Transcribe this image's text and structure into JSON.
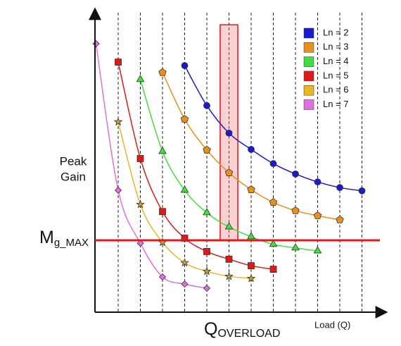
{
  "chart_data": {
    "type": "line",
    "y_label": [
      "Peak",
      "Gain"
    ],
    "x_label": "Load (Q)",
    "xlim": [
      0,
      13
    ],
    "ylim": [
      0,
      100
    ],
    "grid": true,
    "legend": "upper right",
    "mg_max": {
      "text": "M",
      "sub": "g_MAX",
      "value": 24.3,
      "color": "#e01818"
    },
    "q_overload": {
      "text": "Q",
      "sub": "OVERLOAD",
      "x": [
        5.6,
        6.4
      ],
      "top": 97.1,
      "color": "#e01818"
    },
    "series": [
      {
        "name": "Ln = 2",
        "color": "#1a1ad0",
        "marker": "circle",
        "x": [
          4,
          5,
          6,
          7,
          8,
          9,
          10,
          11,
          12
        ],
        "values": [
          83.3,
          69.8,
          60.5,
          55,
          50.2,
          46.7,
          44,
          42.1,
          41
        ]
      },
      {
        "name": "Ln = 3",
        "color": "#e8901a",
        "marker": "pentagon",
        "x": [
          3,
          4,
          5,
          6,
          7,
          8,
          9,
          10,
          11
        ],
        "values": [
          81,
          65.2,
          54.8,
          47.1,
          41.4,
          37.1,
          34.3,
          32.6,
          31.2
        ]
      },
      {
        "name": "Ln = 4",
        "color": "#3ee03e",
        "marker": "triangle",
        "x": [
          2,
          3,
          4,
          5,
          6,
          7,
          8,
          9,
          10
        ],
        "values": [
          78.6,
          54.3,
          41.2,
          33.6,
          28.8,
          25.5,
          22.9,
          21.7,
          20.7
        ]
      },
      {
        "name": "Ln = 5",
        "color": "#e01818",
        "marker": "square",
        "x": [
          1,
          2,
          3,
          4,
          5,
          6,
          7,
          8
        ],
        "values": [
          84.5,
          51.9,
          34,
          25,
          20.5,
          17.9,
          15.7,
          14.5
        ]
      },
      {
        "name": "Ln = 6",
        "color": "#e8b820",
        "marker": "star",
        "x": [
          1,
          2,
          3,
          4,
          5,
          6,
          7
        ],
        "values": [
          64.3,
          36.4,
          23.6,
          16.7,
          13.8,
          12.1,
          11.4
        ]
      },
      {
        "name": "Ln = 7",
        "color": "#e070e0",
        "marker": "diamond",
        "x": [
          0,
          1,
          2,
          3,
          4,
          5
        ],
        "values": [
          90.7,
          41.2,
          23.3,
          11.9,
          9.5,
          8.1
        ]
      }
    ]
  }
}
